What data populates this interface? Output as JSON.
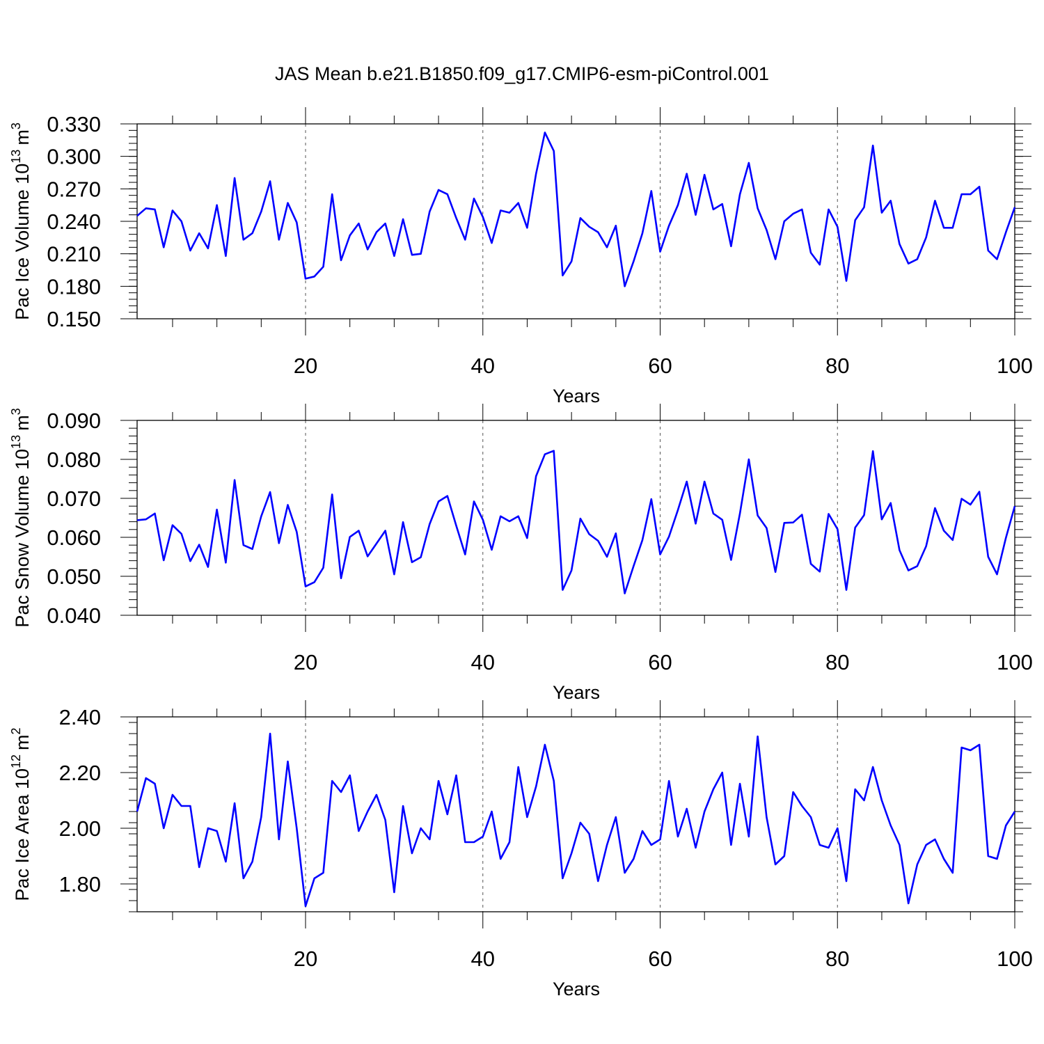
{
  "figure_title": "JAS Mean b.e21.B1850.f09_g17.CMIP6-esm-piControl.001",
  "line_color": "#0000ff",
  "chart_data": [
    {
      "type": "line",
      "title": "JAS Mean b.e21.B1850.f09_g17.CMIP6-esm-piControl.001",
      "ylabel": "Pac Ice Volume 10",
      "ylabel_sup": "13",
      "ylabel_unit": "m",
      "ylabel_unit_sup": "3",
      "xlabel": "Years",
      "ylim": [
        0.15,
        0.33
      ],
      "xlim": [
        1,
        100
      ],
      "y_ticks": [
        "0.150",
        "0.180",
        "0.210",
        "0.240",
        "0.270",
        "0.300",
        "0.330"
      ],
      "y_tick_values": [
        0.15,
        0.18,
        0.21,
        0.24,
        0.27,
        0.3,
        0.33
      ],
      "x_ticks": [
        "20",
        "40",
        "60",
        "80",
        "100"
      ],
      "x_tick_values": [
        20,
        40,
        60,
        80,
        100
      ],
      "grid_x": [
        20,
        40,
        60,
        80
      ],
      "series": [
        {
          "name": "Pac Ice Volume",
          "values": [
            0.245,
            0.252,
            0.251,
            0.216,
            0.25,
            0.24,
            0.213,
            0.229,
            0.215,
            0.255,
            0.208,
            0.28,
            0.223,
            0.229,
            0.249,
            0.277,
            0.223,
            0.257,
            0.239,
            0.187,
            0.189,
            0.198,
            0.265,
            0.204,
            0.227,
            0.238,
            0.214,
            0.23,
            0.238,
            0.208,
            0.242,
            0.209,
            0.21,
            0.249,
            0.269,
            0.265,
            0.243,
            0.223,
            0.261,
            0.244,
            0.22,
            0.25,
            0.248,
            0.257,
            0.234,
            0.284,
            0.322,
            0.305,
            0.19,
            0.203,
            0.243,
            0.235,
            0.23,
            0.216,
            0.236,
            0.18,
            0.203,
            0.229,
            0.268,
            0.212,
            0.236,
            0.255,
            0.284,
            0.246,
            0.283,
            0.251,
            0.256,
            0.217,
            0.265,
            0.294,
            0.252,
            0.232,
            0.205,
            0.24,
            0.247,
            0.251,
            0.211,
            0.2,
            0.251,
            0.235,
            0.185,
            0.241,
            0.253,
            0.31,
            0.248,
            0.259,
            0.219,
            0.201,
            0.205,
            0.225,
            0.259,
            0.234,
            0.234,
            0.265,
            0.265,
            0.272,
            0.213,
            0.205,
            0.23,
            0.253
          ]
        }
      ]
    },
    {
      "type": "line",
      "ylabel": "Pac Snow Volume 10",
      "ylabel_sup": "13",
      "ylabel_unit": "m",
      "ylabel_unit_sup": "3",
      "xlabel": "Years",
      "ylim": [
        0.04,
        0.09
      ],
      "xlim": [
        1,
        100
      ],
      "y_ticks": [
        "0.040",
        "0.050",
        "0.060",
        "0.070",
        "0.080",
        "0.090"
      ],
      "y_tick_values": [
        0.04,
        0.05,
        0.06,
        0.07,
        0.08,
        0.09
      ],
      "x_ticks": [
        "20",
        "40",
        "60",
        "80",
        "100"
      ],
      "x_tick_values": [
        20,
        40,
        60,
        80,
        100
      ],
      "grid_x": [
        20,
        40,
        60,
        80
      ],
      "series": [
        {
          "name": "Pac Snow Volume",
          "values": [
            0.0644,
            0.0646,
            0.0661,
            0.0541,
            0.0631,
            0.0609,
            0.0539,
            0.0581,
            0.0524,
            0.0671,
            0.0535,
            0.0747,
            0.058,
            0.057,
            0.0654,
            0.0716,
            0.0585,
            0.0683,
            0.0614,
            0.0474,
            0.0485,
            0.0522,
            0.071,
            0.0495,
            0.0601,
            0.0617,
            0.0551,
            0.0584,
            0.0617,
            0.0505,
            0.0639,
            0.0536,
            0.0549,
            0.0634,
            0.0692,
            0.0706,
            0.063,
            0.0556,
            0.0692,
            0.0645,
            0.0568,
            0.0654,
            0.0641,
            0.0654,
            0.0598,
            0.0757,
            0.0813,
            0.0822,
            0.0465,
            0.0515,
            0.0648,
            0.0608,
            0.0591,
            0.055,
            0.061,
            0.0456,
            0.0526,
            0.0593,
            0.0698,
            0.0556,
            0.0602,
            0.067,
            0.0743,
            0.0635,
            0.0743,
            0.0661,
            0.0645,
            0.0542,
            0.0661,
            0.08,
            0.0656,
            0.0624,
            0.0511,
            0.0637,
            0.0638,
            0.0658,
            0.0532,
            0.0512,
            0.066,
            0.0621,
            0.0465,
            0.0625,
            0.0657,
            0.0821,
            0.0646,
            0.0688,
            0.0567,
            0.0515,
            0.0526,
            0.0577,
            0.0675,
            0.0617,
            0.0593,
            0.0699,
            0.0684,
            0.0717,
            0.055,
            0.0505,
            0.0599,
            0.068
          ]
        }
      ]
    },
    {
      "type": "line",
      "ylabel": "Pac Ice Area 10",
      "ylabel_sup": "12",
      "ylabel_unit": "m",
      "ylabel_unit_sup": "2",
      "xlabel": "Years",
      "ylim": [
        1.7,
        2.4
      ],
      "xlim": [
        1,
        100
      ],
      "y_ticks": [
        "1.80",
        "2.00",
        "2.20",
        "2.40"
      ],
      "y_tick_values": [
        1.8,
        2.0,
        2.2,
        2.4
      ],
      "x_ticks": [
        "20",
        "40",
        "60",
        "80",
        "100"
      ],
      "x_tick_values": [
        20,
        40,
        60,
        80,
        100
      ],
      "grid_x": [
        20,
        40,
        60,
        80
      ],
      "series": [
        {
          "name": "Pac Ice Area",
          "values": [
            2.06,
            2.18,
            2.16,
            2.0,
            2.12,
            2.08,
            2.08,
            1.86,
            2.0,
            1.99,
            1.88,
            2.09,
            1.82,
            1.88,
            2.04,
            2.34,
            1.96,
            2.24,
            2.0,
            1.72,
            1.82,
            1.84,
            2.17,
            2.13,
            2.19,
            1.99,
            2.06,
            2.12,
            2.03,
            1.77,
            2.08,
            1.91,
            2.0,
            1.96,
            2.17,
            2.05,
            2.19,
            1.95,
            1.95,
            1.97,
            2.06,
            1.89,
            1.95,
            2.22,
            2.04,
            2.15,
            2.3,
            2.17,
            1.82,
            1.91,
            2.02,
            1.98,
            1.81,
            1.94,
            2.04,
            1.84,
            1.89,
            1.99,
            1.94,
            1.96,
            2.17,
            1.97,
            2.07,
            1.93,
            2.06,
            2.14,
            2.2,
            1.94,
            2.16,
            1.97,
            2.33,
            2.04,
            1.87,
            1.9,
            2.13,
            2.08,
            2.04,
            1.94,
            1.93,
            2.0,
            1.81,
            2.14,
            2.1,
            2.22,
            2.1,
            2.01,
            1.94,
            1.73,
            1.87,
            1.94,
            1.96,
            1.89,
            1.84,
            2.29,
            2.28,
            2.3,
            1.9,
            1.89,
            2.01,
            2.06
          ]
        }
      ]
    }
  ]
}
